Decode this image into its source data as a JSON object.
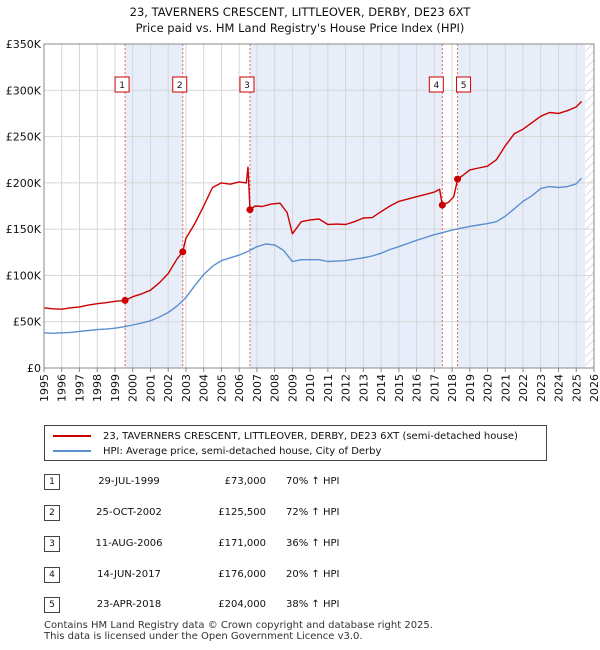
{
  "chart_data": {
    "type": "line",
    "title": "23, TAVERNERS CRESCENT, LITTLEOVER, DERBY, DE23 6XT",
    "subtitle": "Price paid vs. HM Land Registry's House Price Index (HPI)",
    "xlim": [
      1995,
      2026
    ],
    "ylim": [
      0,
      350000
    ],
    "y_ticks": [
      0,
      50000,
      100000,
      150000,
      200000,
      250000,
      300000,
      350000
    ],
    "y_tick_labels": [
      "£0",
      "£50K",
      "£100K",
      "£150K",
      "£200K",
      "£250K",
      "£300K",
      "£350K"
    ],
    "x_ticks": [
      1995,
      1996,
      1997,
      1998,
      1999,
      2000,
      2001,
      2002,
      2003,
      2004,
      2005,
      2006,
      2007,
      2008,
      2009,
      2010,
      2011,
      2012,
      2013,
      2014,
      2015,
      2016,
      2017,
      2018,
      2019,
      2020,
      2021,
      2022,
      2023,
      2024,
      2025,
      2026
    ],
    "x_tick_labels": [
      "1995",
      "1996",
      "1997",
      "1998",
      "1999",
      "2000",
      "2001",
      "2002",
      "2003",
      "2004",
      "2005",
      "2006",
      "2007",
      "2008",
      "2009",
      "2010",
      "2011",
      "2012",
      "2013",
      "2014",
      "2015",
      "2016",
      "2017",
      "2018",
      "2019",
      "2020",
      "2021",
      "2022",
      "2023",
      "2024",
      "2025",
      "2026"
    ],
    "grid": true,
    "shaded_ranges": [
      [
        1999.57,
        2002.82
      ],
      [
        2006.61,
        2017.45
      ],
      [
        2018.31,
        2025.5
      ]
    ],
    "future_hatch_from": 2025.5,
    "series": [
      {
        "name": "23, TAVERNERS CRESCENT, LITTLEOVER, DERBY, DE23 6XT (semi-detached house)",
        "color": "#cc0000",
        "x": [
          1995.0,
          1995.5,
          1996.0,
          1996.5,
          1997.0,
          1997.5,
          1998.0,
          1998.5,
          1999.0,
          1999.57,
          2000.0,
          2000.5,
          2001.0,
          2001.5,
          2002.0,
          2002.5,
          2002.82,
          2003.0,
          2003.5,
          2004.0,
          2004.5,
          2005.0,
          2005.5,
          2006.0,
          2006.4,
          2006.5,
          2006.61,
          2006.9,
          2007.3,
          2007.8,
          2008.3,
          2008.7,
          2009.0,
          2009.5,
          2010.0,
          2010.5,
          2011.0,
          2011.5,
          2012.0,
          2012.5,
          2013.0,
          2013.5,
          2014.0,
          2014.5,
          2015.0,
          2015.5,
          2016.0,
          2016.5,
          2017.0,
          2017.3,
          2017.45,
          2017.8,
          2018.1,
          2018.31,
          2018.6,
          2019.0,
          2019.5,
          2020.0,
          2020.5,
          2021.0,
          2021.5,
          2022.0,
          2022.5,
          2023.0,
          2023.5,
          2024.0,
          2024.5,
          2025.0,
          2025.3
        ],
        "values": [
          65000,
          64000,
          63500,
          65000,
          66000,
          68000,
          69500,
          70500,
          72000,
          73000,
          77000,
          80000,
          84000,
          92000,
          102000,
          118000,
          125500,
          140000,
          156000,
          175000,
          195000,
          200000,
          198500,
          201000,
          200000,
          217000,
          171000,
          175000,
          174500,
          177000,
          178000,
          168000,
          145000,
          158000,
          160000,
          161000,
          155000,
          155500,
          155000,
          158000,
          162000,
          162500,
          169000,
          175000,
          180000,
          182500,
          185000,
          187500,
          190000,
          193000,
          176000,
          179000,
          185000,
          204000,
          208000,
          214000,
          216000,
          218000,
          225000,
          240000,
          253000,
          258000,
          265000,
          272000,
          276000,
          275000,
          278000,
          282000,
          288000
        ]
      },
      {
        "name": "HPI: Average price, semi-detached house, City of Derby",
        "color": "#5b8fd0",
        "x": [
          1995.0,
          1995.5,
          1996.0,
          1996.5,
          1997.0,
          1997.5,
          1998.0,
          1998.5,
          1999.0,
          1999.5,
          2000.0,
          2000.5,
          2001.0,
          2001.5,
          2002.0,
          2002.5,
          2003.0,
          2003.5,
          2004.0,
          2004.5,
          2005.0,
          2005.5,
          2006.0,
          2006.5,
          2007.0,
          2007.5,
          2008.0,
          2008.5,
          2009.0,
          2009.5,
          2010.0,
          2010.5,
          2011.0,
          2011.5,
          2012.0,
          2012.5,
          2013.0,
          2013.5,
          2014.0,
          2014.5,
          2015.0,
          2015.5,
          2016.0,
          2016.5,
          2017.0,
          2017.5,
          2018.0,
          2018.5,
          2019.0,
          2019.5,
          2020.0,
          2020.5,
          2021.0,
          2021.5,
          2022.0,
          2022.5,
          2023.0,
          2023.5,
          2024.0,
          2024.5,
          2025.0,
          2025.3
        ],
        "values": [
          38000,
          37500,
          38000,
          38500,
          39500,
          40500,
          41500,
          42000,
          43000,
          44500,
          46500,
          48500,
          51000,
          55000,
          60000,
          67000,
          76000,
          89000,
          101000,
          110000,
          116000,
          119000,
          122000,
          126000,
          131000,
          134000,
          133000,
          127000,
          115000,
          117000,
          117000,
          117000,
          115000,
          115500,
          116000,
          117500,
          119000,
          121000,
          124000,
          128000,
          131000,
          134500,
          138000,
          141000,
          144000,
          146500,
          149000,
          151000,
          153000,
          154500,
          156000,
          158000,
          164000,
          172000,
          180000,
          186000,
          194000,
          196000,
          195000,
          196000,
          199000,
          205000
        ]
      }
    ],
    "sales": [
      {
        "num": "1",
        "date": "29-JUL-1999",
        "price": "£73,000",
        "hpi": "70% ↑ HPI",
        "x": 1999.57,
        "value": 73000
      },
      {
        "num": "2",
        "date": "25-OCT-2002",
        "price": "£125,500",
        "hpi": "72% ↑ HPI",
        "x": 2002.82,
        "value": 125500
      },
      {
        "num": "3",
        "date": "11-AUG-2006",
        "price": "£171,000",
        "hpi": "36% ↑ HPI",
        "x": 2006.61,
        "value": 171000
      },
      {
        "num": "4",
        "date": "14-JUN-2017",
        "price": "£176,000",
        "hpi": "20% ↑ HPI",
        "x": 2017.45,
        "value": 176000
      },
      {
        "num": "5",
        "date": "23-APR-2018",
        "price": "£204,000",
        "hpi": "38% ↑ HPI",
        "x": 2018.31,
        "value": 204000
      }
    ]
  },
  "legend": {
    "red_label": "23, TAVERNERS CRESCENT, LITTLEOVER, DERBY, DE23 6XT (semi-detached house)",
    "blue_label": "HPI: Average price, semi-detached house, City of Derby",
    "red_color": "#cc0000",
    "blue_color": "#5b8fd0"
  },
  "footer": {
    "line1": "Contains HM Land Registry data © Crown copyright and database right 2025.",
    "line2": "This data is licensed under the Open Government Licence v3.0."
  }
}
